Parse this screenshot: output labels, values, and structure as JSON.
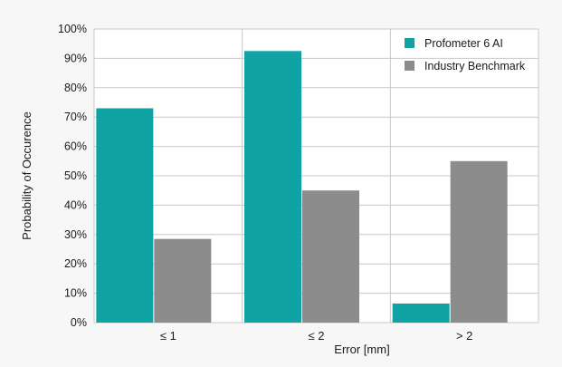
{
  "chart_data": {
    "type": "bar",
    "title": "",
    "xlabel": "Error [mm]",
    "ylabel": "Probability of Occurence",
    "categories": [
      "≤ 1",
      "≤ 2",
      "> 2"
    ],
    "series": [
      {
        "name": "Profometer 6 AI",
        "values": [
          73,
          92.5,
          6.5
        ],
        "color": "#0fa3a3"
      },
      {
        "name": "Industry Benchmark",
        "values": [
          28.5,
          45,
          55
        ],
        "color": "#8c8c8c"
      }
    ],
    "ylim": [
      0,
      100
    ],
    "y_ticks": [
      {
        "value": 0,
        "label": "0%"
      },
      {
        "value": 10,
        "label": "10%"
      },
      {
        "value": 20,
        "label": "20%"
      },
      {
        "value": 30,
        "label": "30%"
      },
      {
        "value": 40,
        "label": "40%"
      },
      {
        "value": 50,
        "label": "50%"
      },
      {
        "value": 60,
        "label": "60%"
      },
      {
        "value": 70,
        "label": "70%"
      },
      {
        "value": 80,
        "label": "80%"
      },
      {
        "value": 90,
        "label": "90%"
      },
      {
        "value": 100,
        "label": "100%"
      }
    ],
    "grid": true,
    "legend": "top-right"
  }
}
